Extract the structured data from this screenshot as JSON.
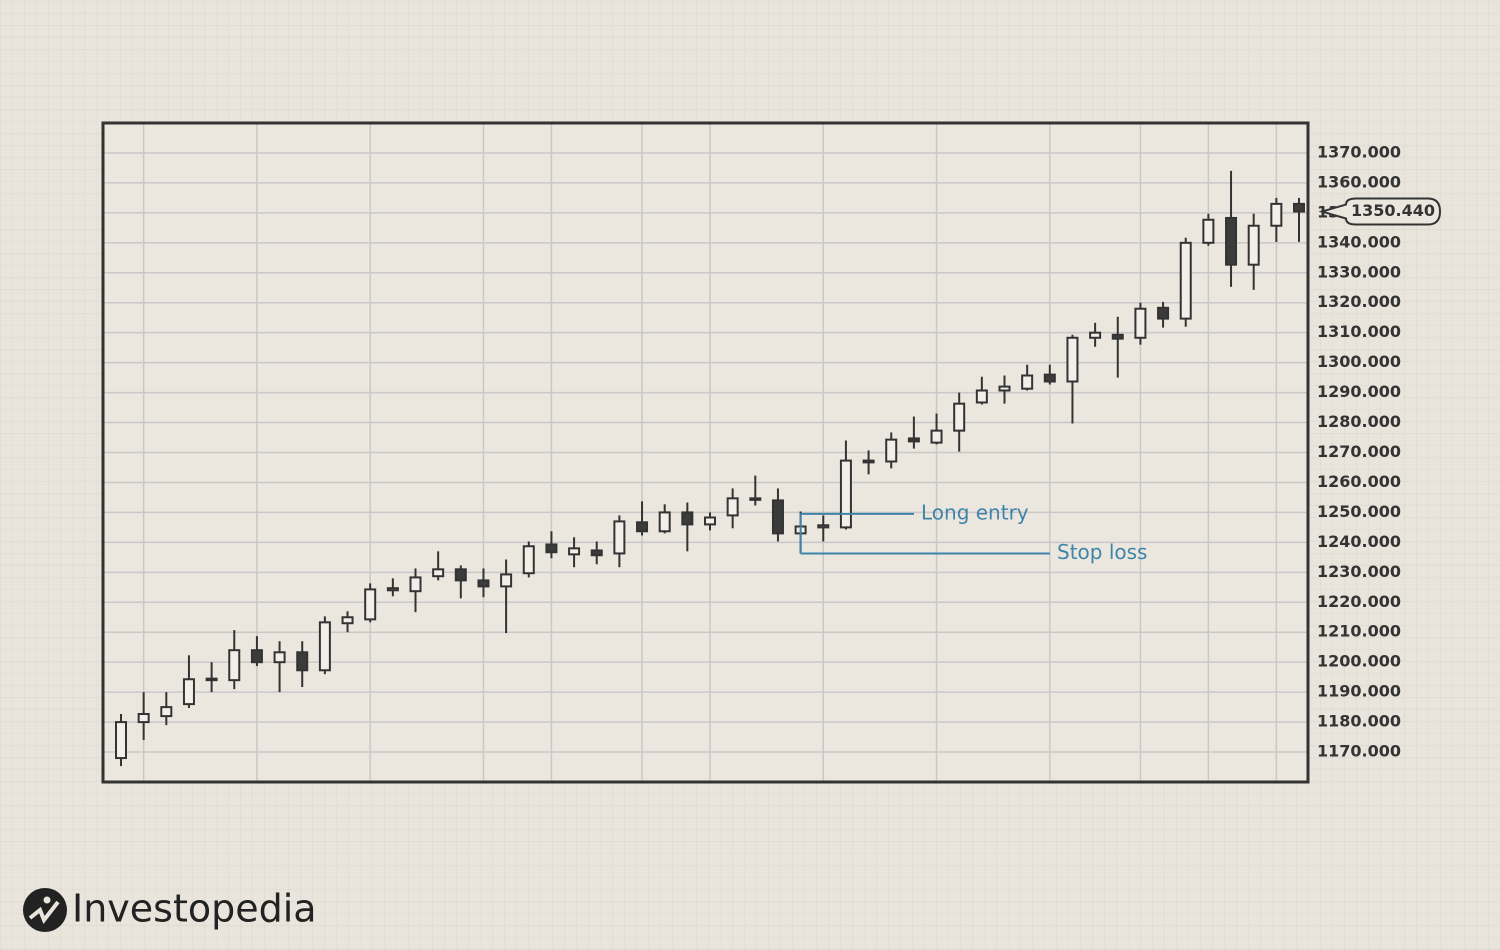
{
  "chart_data": {
    "type": "candlestick",
    "categories": [
      null,
      null,
      null,
      null,
      null,
      null,
      null,
      null,
      null,
      null,
      null,
      null,
      null,
      null,
      null,
      null,
      null,
      null,
      null,
      null,
      null,
      null,
      null,
      null,
      null,
      null,
      null,
      null,
      null,
      null,
      null,
      null,
      null,
      null,
      null,
      null,
      null,
      null,
      null,
      null,
      null,
      null,
      null,
      null,
      null,
      null,
      null,
      null,
      null,
      null,
      null,
      null,
      null
    ],
    "open": [
      1168,
      1180,
      1182,
      1186,
      1194,
      1194,
      1204,
      1200,
      1203.3,
      1197.3,
      1213,
      1214.3,
      1224,
      1223.7,
      1228.7,
      1231,
      1227.3,
      1225.3,
      1229.7,
      1239.3,
      1236,
      1237.3,
      1236.3,
      1246.7,
      1243.7,
      1250,
      1246,
      1249,
      1254.7,
      1254,
      1243,
      1245,
      1245,
      1267.3,
      1267,
      1274.7,
      1273.3,
      1277.3,
      1286.7,
      1290.7,
      1291.3,
      1296,
      1293.7,
      1308.3,
      1309.3,
      1308.3,
      1318.3,
      1314.7,
      1340,
      1348.3,
      1332.7,
      1345.7,
      1353
    ],
    "high": [
      1182.7,
      1190,
      1190,
      1202.3,
      1200,
      1210.7,
      1208.7,
      1207,
      1207,
      1215.3,
      1217,
      1226.3,
      1228,
      1231.3,
      1237,
      1232.3,
      1231.3,
      1234.3,
      1240.3,
      1243.7,
      1241.7,
      1240.3,
      1249,
      1253.7,
      1252.7,
      1253.3,
      1250,
      1258,
      1262.3,
      1258,
      1250.3,
      1249,
      1274,
      1270.7,
      1276.7,
      1282,
      1283,
      1290,
      1295.3,
      1295.7,
      1299.3,
      1299.3,
      1309.3,
      1313.3,
      1315.3,
      1320,
      1320.3,
      1341.7,
      1349.7,
      1364,
      1349.7,
      1355,
      1355
    ],
    "low": [
      1165.3,
      1174,
      1179,
      1184.7,
      1190,
      1191,
      1198.7,
      1190,
      1191.7,
      1196,
      1210,
      1213.3,
      1222,
      1216.7,
      1227.3,
      1221.3,
      1221.7,
      1209.7,
      1228.3,
      1234.7,
      1231.7,
      1232.7,
      1231.7,
      1242.3,
      1243,
      1237,
      1244,
      1244.7,
      1252.3,
      1240.3,
      1236.3,
      1240.3,
      1244.3,
      1262.7,
      1264.7,
      1271.3,
      1272.7,
      1270.3,
      1286,
      1286.3,
      1290.7,
      1292.7,
      1279.7,
      1305.3,
      1295,
      1306,
      1311.7,
      1312,
      1339,
      1325.3,
      1324.3,
      1340.3,
      1340.3
    ],
    "close": [
      1180,
      1182.7,
      1185,
      1194.3,
      1194.5,
      1204,
      1200,
      1203.3,
      1197.3,
      1213.3,
      1215,
      1224.3,
      1224.7,
      1228.3,
      1231,
      1227.3,
      1225.3,
      1229.3,
      1238.7,
      1236.7,
      1238,
      1235.7,
      1247,
      1243.7,
      1250,
      1246,
      1248.3,
      1254.7,
      1254.3,
      1243,
      1245.3,
      1245.7,
      1267.3,
      1266.7,
      1274.3,
      1273.7,
      1277.3,
      1286.3,
      1290.7,
      1292,
      1295.7,
      1293.7,
      1308.3,
      1310,
      1308,
      1318,
      1314.7,
      1340,
      1347.7,
      1332.7,
      1345.7,
      1353,
      1350.44
    ],
    "up_color": "#f2efe8",
    "down_color": "#3b3b3b",
    "ylim": [
      1160,
      1380
    ],
    "yticks": [
      {
        "value": 1170,
        "label": "1170.000"
      },
      {
        "value": 1180,
        "label": "1180.000"
      },
      {
        "value": 1190,
        "label": "1190.000"
      },
      {
        "value": 1200,
        "label": "1200.000"
      },
      {
        "value": 1210,
        "label": "1210.000"
      },
      {
        "value": 1220,
        "label": "1220.000"
      },
      {
        "value": 1230,
        "label": "1230.000"
      },
      {
        "value": 1240,
        "label": "1240.000"
      },
      {
        "value": 1250,
        "label": "1250.000"
      },
      {
        "value": 1260,
        "label": "1260.000"
      },
      {
        "value": 1270,
        "label": "1270.000"
      },
      {
        "value": 1280,
        "label": "1280.000"
      },
      {
        "value": 1290,
        "label": "1290.000"
      },
      {
        "value": 1300,
        "label": "1300.000"
      },
      {
        "value": 1310,
        "label": "1310.000"
      },
      {
        "value": 1320,
        "label": "1320.000"
      },
      {
        "value": 1330,
        "label": "1330.000"
      },
      {
        "value": 1340,
        "label": "1340.000"
      },
      {
        "value": 1350,
        "label": "1350.000"
      },
      {
        "value": 1360,
        "label": "1360.000"
      },
      {
        "value": 1370,
        "label": "1370.000"
      }
    ],
    "grid": true,
    "x_grid_at": [
      1,
      6,
      11,
      16,
      19,
      23,
      26,
      31,
      36,
      41,
      45,
      48,
      51
    ],
    "last_price": {
      "value": 1350.44,
      "label": "1350.440"
    },
    "annotations": [
      {
        "text": "Long entry",
        "value": 1249.5
      },
      {
        "text": "Stop loss",
        "value": 1236.3
      }
    ],
    "annotation_color": "#3f84a8",
    "brand": "Investopedia"
  }
}
